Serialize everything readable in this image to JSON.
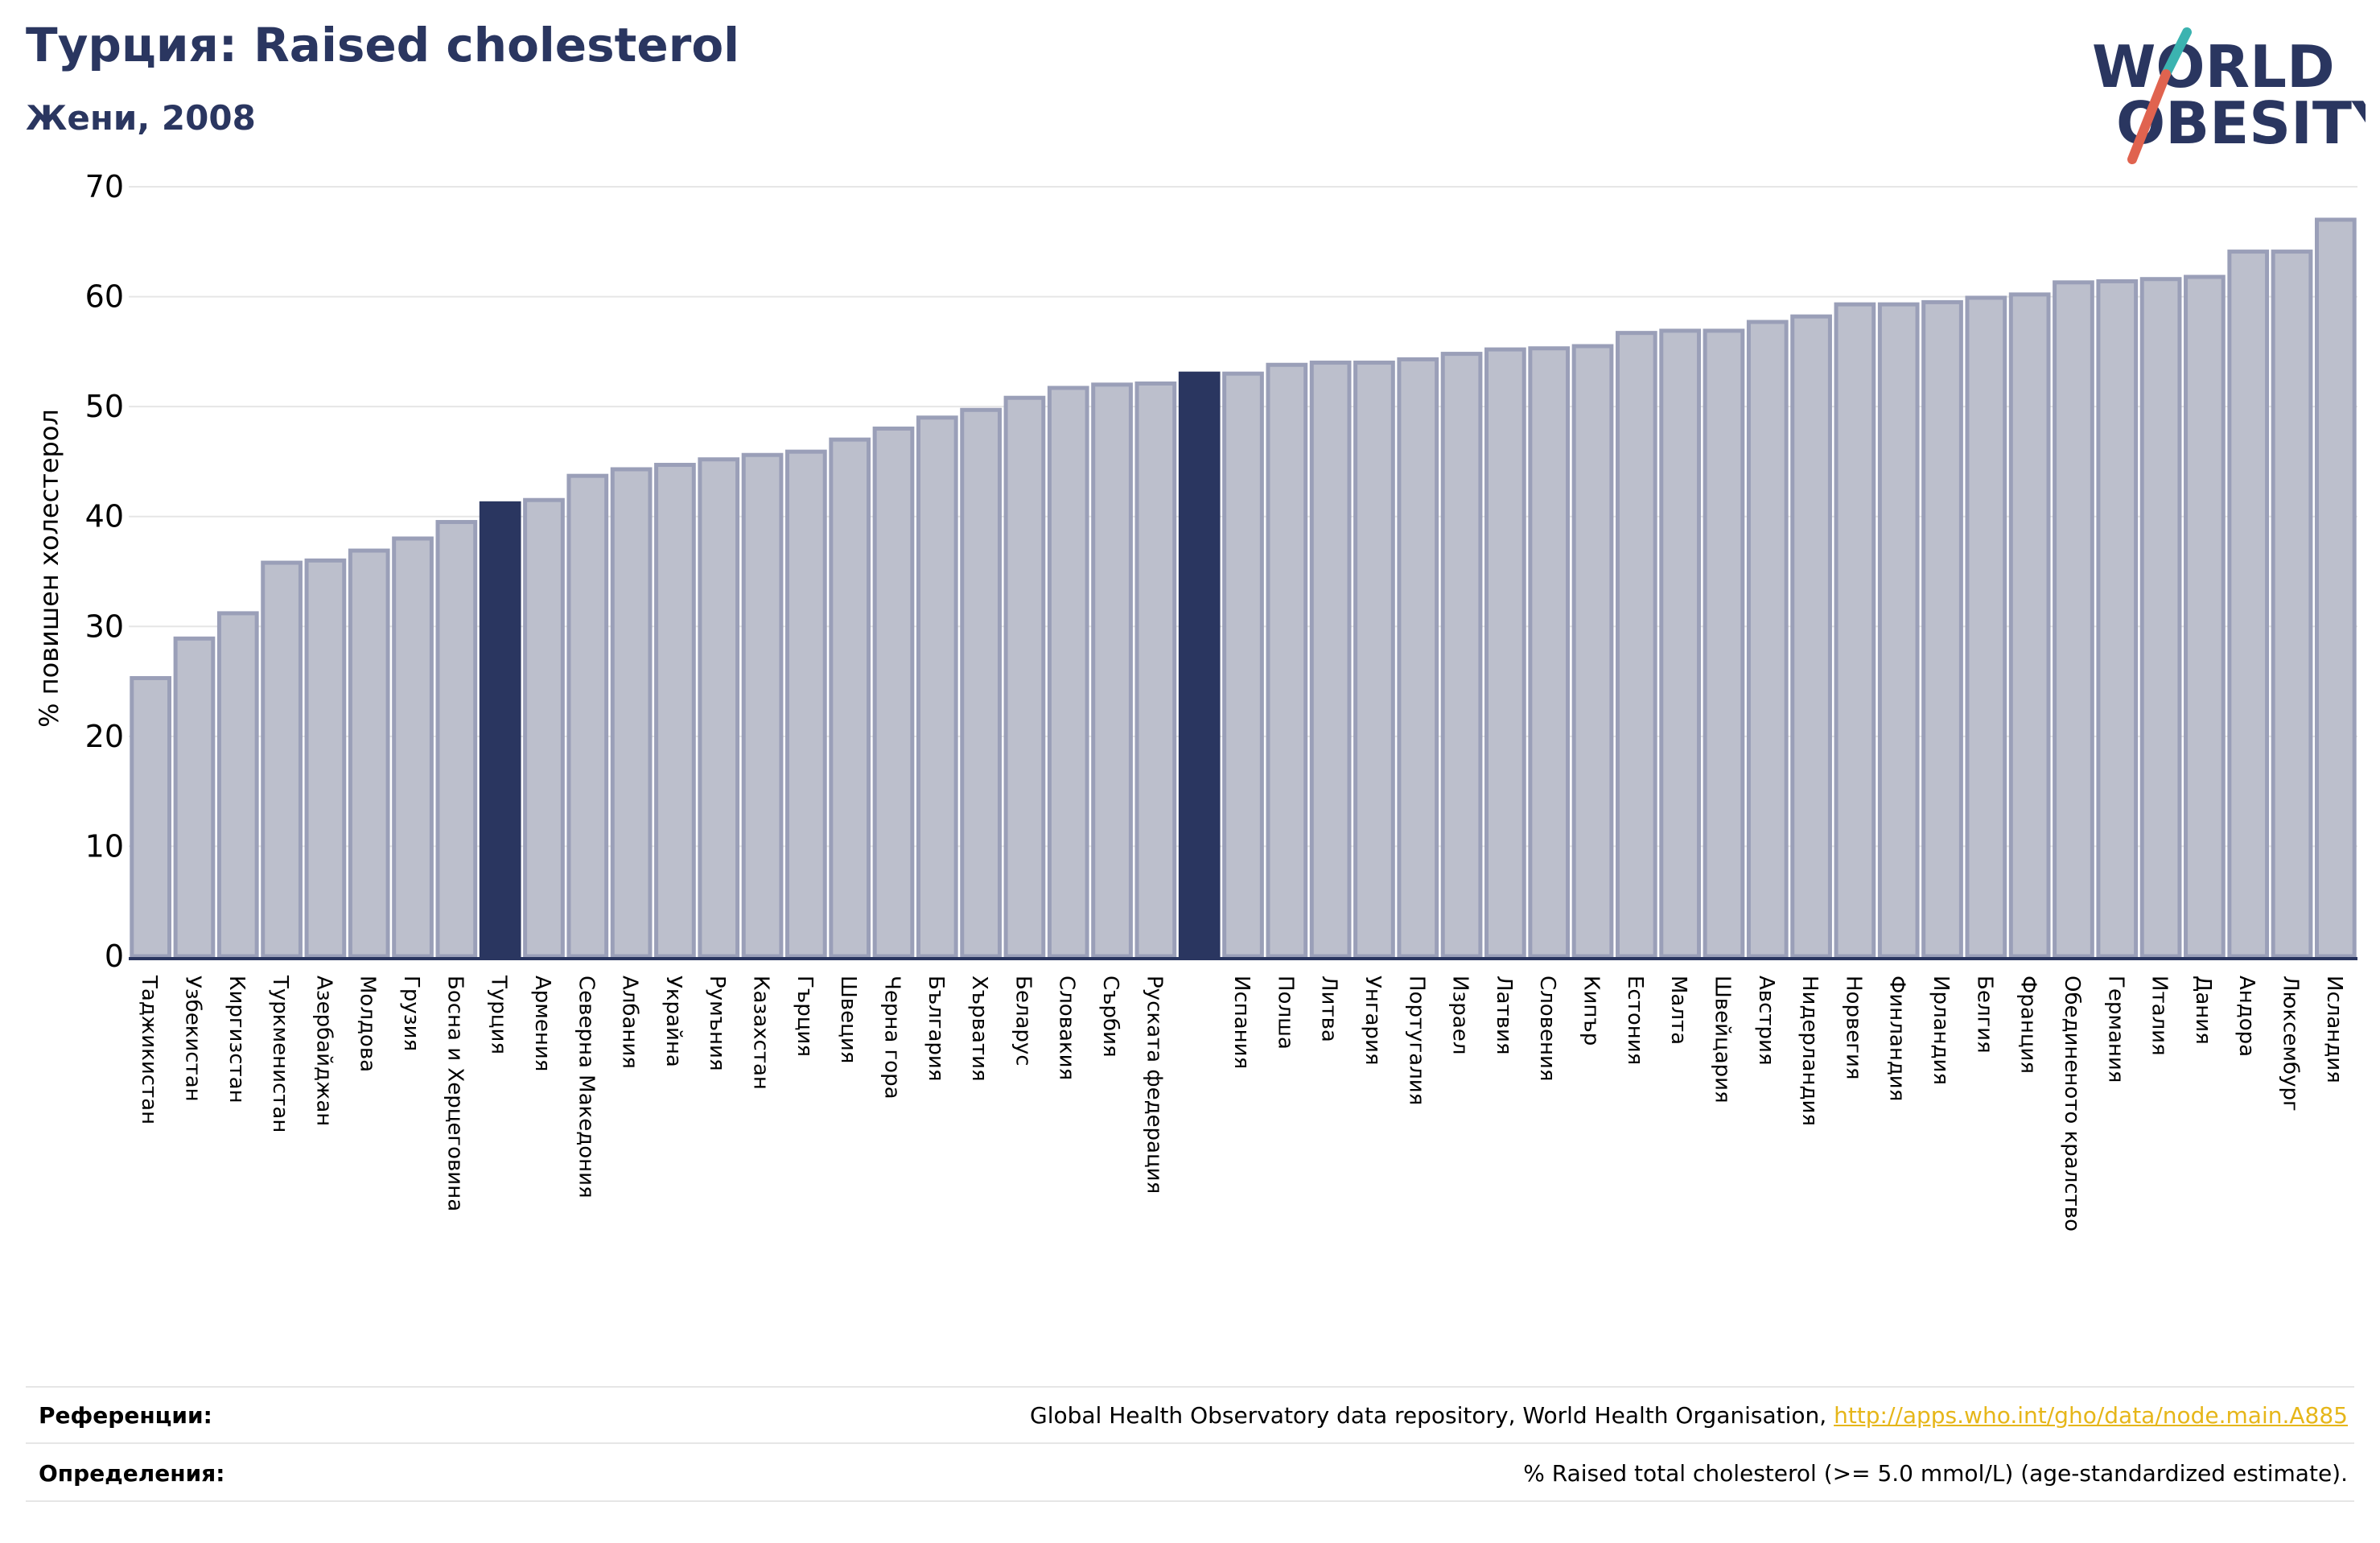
{
  "header": {
    "title": "Турция: Raised cholesterol",
    "subtitle": "Жени, 2008"
  },
  "logo": {
    "line1": "WORLD",
    "line2": "OBESITY",
    "icon": "world-obesity-slash-logo"
  },
  "colors": {
    "bar": "#bcbfcc",
    "bar_edge": "#9a9fb8",
    "highlight": "#2a3660",
    "grid": "#e6e6e6",
    "link": "#e6b619",
    "title": "#2a3660"
  },
  "chart_data": {
    "type": "bar",
    "ylabel": "% повишен холестерол",
    "ylim": [
      0,
      70
    ],
    "yticks": [
      0,
      10,
      20,
      30,
      40,
      50,
      60,
      70
    ],
    "grid": true,
    "categories": [
      "Таджикистан",
      "Узбекистан",
      "Киргизстан",
      "Туркменистан",
      "Азербайджан",
      "Молдова",
      "Грузия",
      "Босна и Херцеговина",
      "Турция",
      "Армения",
      "Северна Македония",
      "Албания",
      "Украйна",
      "Румъния",
      "Казахстан",
      "Гърция",
      "Швеция",
      "Черна гора",
      "България",
      "Хърватия",
      "Беларус",
      "Словакия",
      "Сърбия",
      "Руската федерация",
      "",
      "Испания",
      "Полша",
      "Литва",
      "Унгария",
      "Португалия",
      "Израел",
      "Латвия",
      "Словения",
      "Кипър",
      "Естония",
      "Малта",
      "Швейцария",
      "Австрия",
      "Нидерландия",
      "Норвегия",
      "Финландия",
      "Ирландия",
      "Белгия",
      "Франция",
      "Обединеното кралство",
      "Германия",
      "Италия",
      "Дания",
      "Андора",
      "Люксембург",
      "Исландия"
    ],
    "values": [
      25.3,
      28.9,
      31.2,
      35.8,
      36.0,
      36.9,
      38.0,
      39.5,
      41.2,
      41.5,
      43.7,
      44.3,
      44.7,
      45.2,
      45.6,
      45.9,
      47.0,
      48.0,
      49.0,
      49.7,
      50.8,
      51.7,
      52.0,
      52.1,
      53.0,
      53.0,
      53.8,
      54.0,
      54.0,
      54.3,
      54.8,
      55.2,
      55.3,
      55.5,
      56.7,
      56.9,
      56.9,
      57.7,
      58.2,
      59.3,
      59.3,
      59.5,
      59.9,
      60.2,
      61.3,
      61.4,
      61.6,
      61.8,
      64.1,
      64.1,
      67.0
    ],
    "highlight": [
      8,
      24
    ]
  },
  "footer": {
    "references_label": "Референции:",
    "references_text": "Global Health Observatory data repository, World Health Organisation, ",
    "references_link": "http://apps.who.int/gho/data/node.main.A885",
    "definitions_label": "Определения:",
    "definitions_text": "% Raised total cholesterol (>= 5.0 mmol/L) (age-standardized estimate)."
  }
}
